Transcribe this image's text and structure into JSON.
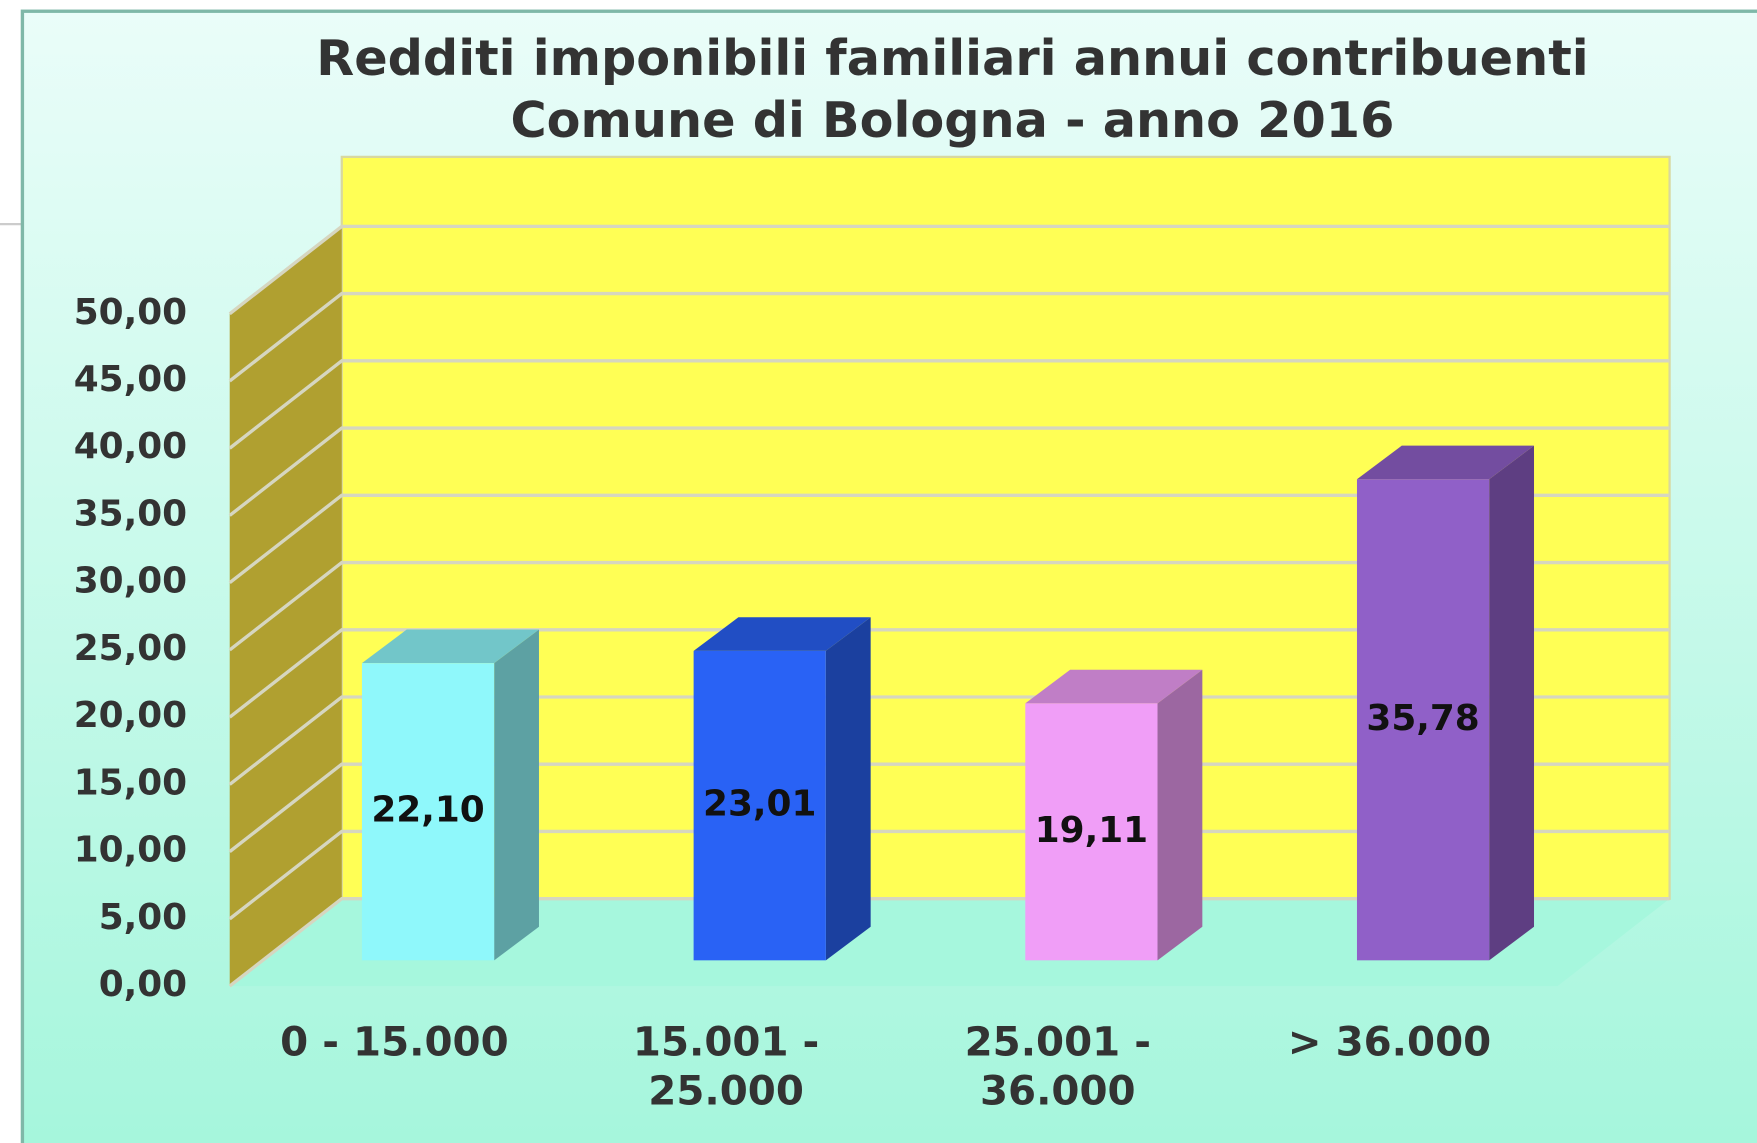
{
  "chart_data": {
    "type": "bar3d",
    "title": "Redditi imponibili familiari annui contribuenti",
    "subtitle": "Comune di Bologna - anno 2016",
    "categories": [
      "0 - 15.000",
      "15.001 - 25.000",
      "25.001 - 36.000",
      "> 36.000"
    ],
    "values": [
      22.1,
      23.01,
      19.11,
      35.78
    ],
    "value_labels": [
      "22,10",
      "23,01",
      "19,11",
      "35,78"
    ],
    "colors": [
      "#8ff8fb",
      "#2962f5",
      "#f09ef7",
      "#9060c8"
    ],
    "ylim": [
      0,
      50
    ],
    "yticks": [
      {
        "value": 0,
        "label": "0,00"
      },
      {
        "value": 5,
        "label": "5,00"
      },
      {
        "value": 10,
        "label": "10,00"
      },
      {
        "value": 15,
        "label": "15,00"
      },
      {
        "value": 20,
        "label": "20,00"
      },
      {
        "value": 25,
        "label": "25,00"
      },
      {
        "value": 30,
        "label": "30,00"
      },
      {
        "value": 35,
        "label": "35,00"
      },
      {
        "value": 40,
        "label": "40,00"
      },
      {
        "value": 45,
        "label": "45,00"
      },
      {
        "value": 50,
        "label": "50,00"
      }
    ],
    "grid": true
  }
}
